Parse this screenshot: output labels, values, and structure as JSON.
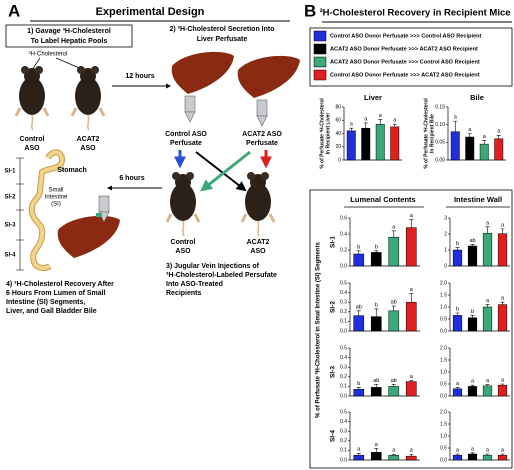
{
  "panel_a": {
    "label": "A",
    "title": "Experimental Design",
    "step1": [
      "1) Gavage ³H-Cholesterol",
      "To Label Hepatic Pools"
    ],
    "tracer": "³H-Cholesterol",
    "donor_control": [
      "Control",
      "ASO"
    ],
    "donor_acat2": [
      "ACAT2",
      "ASO"
    ],
    "time1": "12 hours",
    "step2": [
      "2) ³H-Cholesterol Secretion Into",
      "Liver Perfusate"
    ],
    "perfusate_control": [
      "Control ASO",
      "Perfusate"
    ],
    "perfusate_acat2": [
      "ACAT2 ASO",
      "Perfusate"
    ],
    "recipient_control": [
      "Control",
      "ASO"
    ],
    "recipient_acat2": [
      "ACAT2",
      "ASO"
    ],
    "time2": "6 hours",
    "stomach": "Stomach",
    "intestine": [
      "Small",
      "Intestine",
      "(SI)"
    ],
    "segments": [
      "SI-1",
      "SI-2",
      "SI-3",
      "SI-4"
    ],
    "step4": [
      "4) ³H-Cholesterol Recovery After",
      "6 Hours From Lumen of Small",
      "Intestine (SI) Segments,",
      "Liver, and Gall Bladder Bile"
    ],
    "step3": [
      "3) Jugular Vein Injections of",
      "³H-Cholesterol-Labeled Persufate",
      "Into ASO-Treated",
      "Recipients"
    ]
  },
  "panel_b": {
    "label": "B",
    "title": "³H-Cholesterol Recovery in Recipient Mice",
    "legend": [
      {
        "name": "Control ASO Donor Perfusate >>> Control ASO Recipient",
        "color": "#1f2fe0"
      },
      {
        "name": "ACAT2 ASO Donor Perfusate >>> ACAT2 ASO Recipient",
        "color": "#000000"
      },
      {
        "name": "ACAT2 ASO Donor Perfusate >>> Control ASO Recipient",
        "color": "#3aa878"
      },
      {
        "name": "Control ASO Donor Perfusate >>> ACAT2 ASO Recipient",
        "color": "#e02020"
      }
    ],
    "columns": [
      "Lumenal Contents",
      "Intestine Wall"
    ],
    "rows": [
      "SI-1",
      "SI-2",
      "SI-3",
      "SI-4"
    ],
    "ylabel": "% of Perfusate ³H-Cholesterol in Smal Intestine (SI) Segments"
  },
  "chart_data": [
    {
      "type": "bar",
      "title": "Liver",
      "ylabel": [
        "% of Perfusate ³H-Cholesterol",
        "In Recipient Liver"
      ],
      "colors": [
        "#1f2fe0",
        "#000000",
        "#3aa878",
        "#e02020"
      ],
      "values": [
        44,
        48,
        54,
        50
      ],
      "errors": [
        4,
        8,
        7,
        4
      ],
      "letters": [
        "a",
        "a",
        "a",
        "a"
      ],
      "ylim": [
        0,
        80
      ],
      "yticks": [
        0,
        20,
        40,
        60,
        80
      ]
    },
    {
      "type": "bar",
      "title": "Bile",
      "ylabel": [
        "% of Perfusate ³H-Cholesterol",
        "In Recipient Bile"
      ],
      "colors": [
        "#1f2fe0",
        "#000000",
        "#3aa878",
        "#e02020"
      ],
      "values": [
        0.08,
        0.065,
        0.045,
        0.06
      ],
      "errors": [
        0.03,
        0.01,
        0.01,
        0.01
      ],
      "letters": [
        "a",
        "a",
        "a",
        "a"
      ],
      "ylim": [
        0,
        0.15
      ],
      "yticks": [
        {
          "value": 0,
          "label": "0.00"
        },
        0.05,
        {
          "value": 0.1,
          "label": "0.10"
        },
        0.15
      ]
    },
    {
      "type": "bar",
      "colors": [
        "#1f2fe0",
        "#000000",
        "#3aa878",
        "#e02020"
      ],
      "values": [
        0.15,
        0.17,
        0.36,
        0.48
      ],
      "errors": [
        0.04,
        0.02,
        0.08,
        0.1
      ],
      "letters": [
        "b",
        "b",
        "a",
        "a"
      ],
      "ylim": [
        0,
        0.6
      ],
      "yticks": [
        {
          "value": 0,
          "label": "0.0"
        },
        0.2,
        0.4,
        0.6
      ]
    },
    {
      "type": "bar",
      "colors": [
        "#1f2fe0",
        "#000000",
        "#3aa878",
        "#e02020"
      ],
      "values": [
        1.0,
        1.25,
        2.05,
        2.02
      ],
      "errors": [
        0.15,
        0.1,
        0.4,
        0.3
      ],
      "letters": [
        "b",
        "ab",
        "a",
        "a"
      ],
      "ylim": [
        0,
        3
      ],
      "yticks": [
        0,
        1,
        2,
        3
      ]
    },
    {
      "type": "bar",
      "colors": [
        "#1f2fe0",
        "#000000",
        "#3aa878",
        "#e02020"
      ],
      "values": [
        0.16,
        0.15,
        0.21,
        0.3
      ],
      "errors": [
        0.05,
        0.08,
        0.05,
        0.09
      ],
      "letters": [
        "ab",
        "b",
        "ab",
        "a"
      ],
      "ylim": [
        0,
        0.5
      ],
      "yticks": [
        {
          "value": 0,
          "label": "0.0"
        },
        0.1,
        0.2,
        0.3,
        0.4,
        0.5
      ]
    },
    {
      "type": "bar",
      "colors": [
        "#1f2fe0",
        "#000000",
        "#3aa878",
        "#e02020"
      ],
      "values": [
        0.65,
        0.55,
        1.0,
        1.1
      ],
      "errors": [
        0.1,
        0.1,
        0.1,
        0.1
      ],
      "letters": [
        "b",
        "b",
        "a",
        "a"
      ],
      "ylim": [
        0,
        2
      ],
      "yticks": [
        {
          "value": 0,
          "label": "0.0"
        },
        0.5,
        {
          "value": 1,
          "label": "1.0"
        },
        1.5,
        {
          "value": 2,
          "label": "2.0"
        }
      ]
    },
    {
      "type": "bar",
      "colors": [
        "#1f2fe0",
        "#000000",
        "#3aa878",
        "#e02020"
      ],
      "values": [
        0.07,
        0.09,
        0.1,
        0.15
      ],
      "errors": [
        0.02,
        0.03,
        0.02,
        0.01
      ],
      "letters": [
        "b",
        "ab",
        "ab",
        "a"
      ],
      "ylim": [
        0,
        0.5
      ],
      "yticks": [
        {
          "value": 0,
          "label": "0.0"
        },
        0.1,
        0.2,
        0.3,
        0.4,
        0.5
      ]
    },
    {
      "type": "bar",
      "colors": [
        "#1f2fe0",
        "#000000",
        "#3aa878",
        "#e02020"
      ],
      "values": [
        0.3,
        0.4,
        0.42,
        0.45
      ],
      "errors": [
        0.05,
        0.05,
        0.05,
        0.05
      ],
      "letters": [
        "a",
        "a",
        "a",
        "a"
      ],
      "ylim": [
        0,
        2
      ],
      "yticks": [
        {
          "value": 0,
          "label": "0.0"
        },
        0.5,
        {
          "value": 1,
          "label": "1.0"
        },
        1.5,
        {
          "value": 2,
          "label": "2.0"
        }
      ]
    },
    {
      "type": "bar",
      "colors": [
        "#1f2fe0",
        "#000000",
        "#3aa878",
        "#e02020"
      ],
      "values": [
        0.05,
        0.08,
        0.05,
        0.04
      ],
      "errors": [
        0.02,
        0.04,
        0.01,
        0.02
      ],
      "letters": [
        "a",
        "a",
        "a",
        "a"
      ],
      "ylim": [
        0,
        0.5
      ],
      "yticks": [
        {
          "value": 0,
          "label": "0.0"
        },
        0.1,
        0.2,
        0.3,
        0.4,
        0.5
      ]
    },
    {
      "type": "bar",
      "colors": [
        "#1f2fe0",
        "#000000",
        "#3aa878",
        "#e02020"
      ],
      "values": [
        0.2,
        0.25,
        0.2,
        0.2
      ],
      "errors": [
        0.05,
        0.05,
        0.05,
        0.05
      ],
      "letters": [
        "a",
        "a",
        "a",
        "a"
      ],
      "ylim": [
        0,
        2
      ],
      "yticks": [
        {
          "value": 0,
          "label": "0.0"
        },
        0.5,
        {
          "value": 1,
          "label": "1.0"
        },
        1.5,
        {
          "value": 2,
          "label": "2.0"
        }
      ]
    }
  ]
}
